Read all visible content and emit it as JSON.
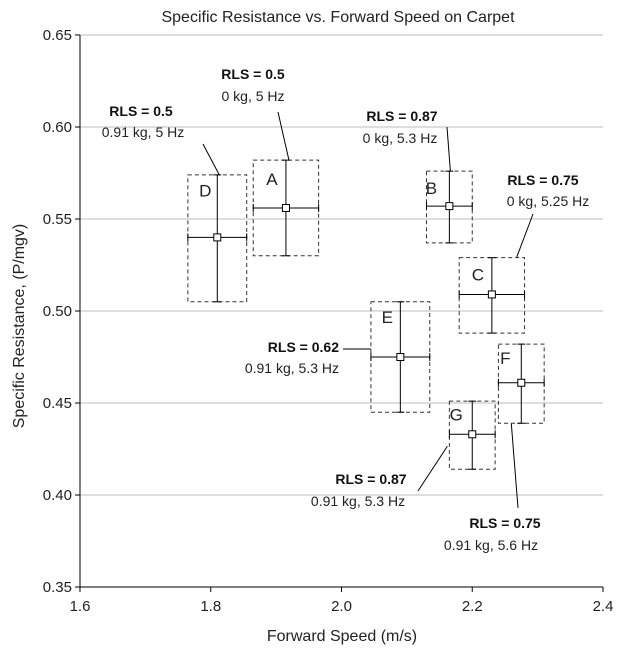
{
  "chart_data": {
    "type": "scatter",
    "title": "Specific Resistance vs. Forward Speed on Carpet",
    "xlabel": "Forward Speed (m/s)",
    "ylabel": "Specific Resistance, (P/mgv)",
    "xlim": [
      1.6,
      2.4
    ],
    "ylim": [
      0.35,
      0.65
    ],
    "x_ticks": [
      "1.6",
      "1.8",
      "2.0",
      "2.2",
      "2.4"
    ],
    "y_ticks": [
      "0.35",
      "0.40",
      "0.45",
      "0.50",
      "0.55",
      "0.60",
      "0.65"
    ],
    "grid": "horizontal",
    "points": [
      {
        "letter": "A",
        "x": 1.915,
        "y": 0.556,
        "x_err": [
          1.865,
          1.965
        ],
        "y_err": [
          0.53,
          0.582
        ],
        "rls": "RLS = 0.5",
        "conditions": "0 kg, 5 Hz"
      },
      {
        "letter": "B",
        "x": 2.165,
        "y": 0.557,
        "x_err": [
          2.13,
          2.2
        ],
        "y_err": [
          0.537,
          0.576
        ],
        "rls": "RLS = 0.87",
        "conditions": "0 kg, 5.3 Hz"
      },
      {
        "letter": "C",
        "x": 2.23,
        "y": 0.509,
        "x_err": [
          2.18,
          2.28
        ],
        "y_err": [
          0.488,
          0.529
        ],
        "rls": "RLS = 0.75",
        "conditions": "0 kg, 5.25 Hz"
      },
      {
        "letter": "D",
        "x": 1.81,
        "y": 0.54,
        "x_err": [
          1.765,
          1.855
        ],
        "y_err": [
          0.505,
          0.574
        ],
        "rls": "RLS = 0.5",
        "conditions": "0.91 kg, 5 Hz"
      },
      {
        "letter": "E",
        "x": 2.09,
        "y": 0.475,
        "x_err": [
          2.045,
          2.135
        ],
        "y_err": [
          0.445,
          0.505
        ],
        "rls": "RLS = 0.62",
        "conditions": "0.91 kg, 5.3 Hz"
      },
      {
        "letter": "F",
        "x": 2.275,
        "y": 0.461,
        "x_err": [
          2.24,
          2.31
        ],
        "y_err": [
          0.439,
          0.482
        ],
        "rls": "RLS = 0.75",
        "conditions": "0.91 kg, 5.6 Hz"
      },
      {
        "letter": "G",
        "x": 2.2,
        "y": 0.433,
        "x_err": [
          2.165,
          2.235
        ],
        "y_err": [
          0.414,
          0.451
        ],
        "rls": "RLS = 0.87",
        "conditions": "0.91 kg, 5.3 Hz"
      }
    ]
  }
}
